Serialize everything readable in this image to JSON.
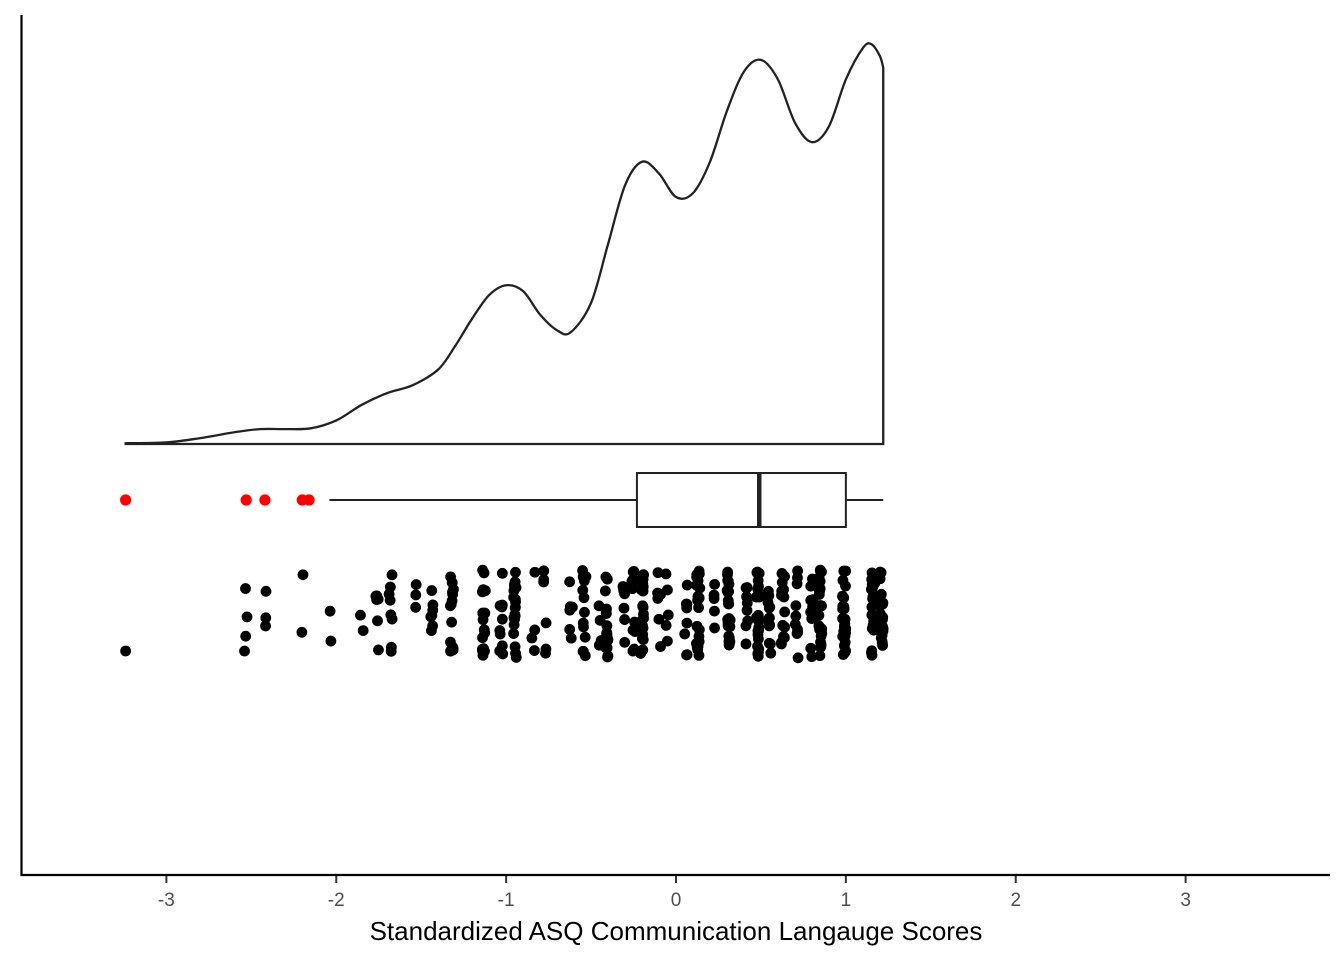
{
  "chart_data": {
    "type": "raincloud",
    "title": "",
    "xlabel": "Standardized ASQ Communication Langauge Scores",
    "ylabel": "",
    "xlim": [
      -3.85,
      3.85
    ],
    "xticks": [
      -3,
      -2,
      -1,
      0,
      1,
      2,
      3
    ],
    "xtick_labels": [
      "-3",
      "-2",
      "-1",
      "0",
      "1",
      "2",
      "3"
    ],
    "grid": false,
    "colors": {
      "line": "#222222",
      "point": "#000000",
      "outlier": "#ff0000",
      "axis": "#000000"
    },
    "density": {
      "x": [
        -3.24,
        -3.0,
        -2.8,
        -2.6,
        -2.45,
        -2.3,
        -2.15,
        -2.0,
        -1.85,
        -1.7,
        -1.55,
        -1.4,
        -1.3,
        -1.2,
        -1.1,
        -1.0,
        -0.9,
        -0.8,
        -0.7,
        -0.62,
        -0.5,
        -0.4,
        -0.3,
        -0.2,
        -0.1,
        0.0,
        0.1,
        0.2,
        0.3,
        0.4,
        0.5,
        0.6,
        0.7,
        0.8,
        0.9,
        1.0,
        1.1,
        1.15,
        1.2,
        1.22
      ],
      "y": [
        0.002,
        0.004,
        0.015,
        0.03,
        0.038,
        0.038,
        0.04,
        0.06,
        0.1,
        0.13,
        0.15,
        0.19,
        0.25,
        0.32,
        0.38,
        0.405,
        0.39,
        0.33,
        0.29,
        0.285,
        0.36,
        0.51,
        0.66,
        0.72,
        0.69,
        0.63,
        0.64,
        0.72,
        0.85,
        0.95,
        0.98,
        0.93,
        0.82,
        0.77,
        0.81,
        0.93,
        1.01,
        1.02,
        0.99,
        0.96
      ]
    },
    "boxplot": {
      "whisker_low": -2.04,
      "q1": -0.23,
      "median": 0.49,
      "q3": 1.0,
      "whisker_high": 1.22,
      "outliers": [
        -3.24,
        -2.53,
        -2.42,
        -2.2,
        -2.16
      ]
    },
    "points": {
      "count": 420,
      "x_range": [
        -3.24,
        1.22
      ],
      "jitter": "vertical"
    }
  }
}
